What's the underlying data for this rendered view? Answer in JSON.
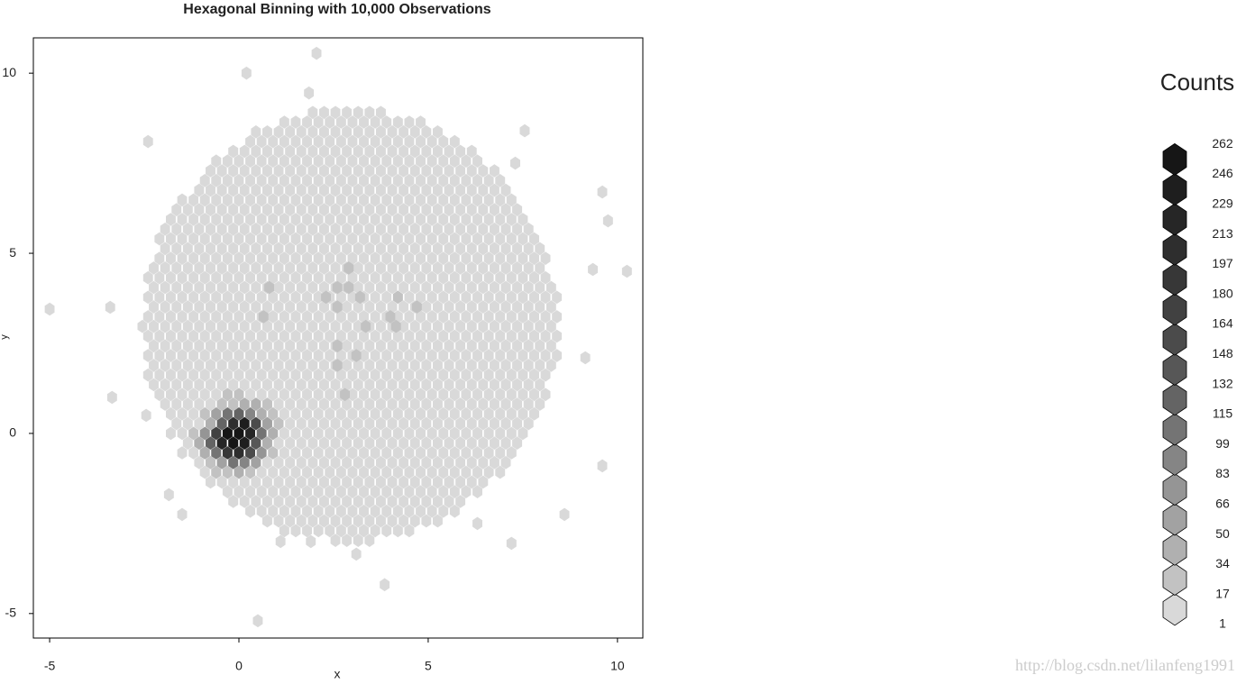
{
  "chart_data": {
    "type": "hexbin",
    "title": "Hexagonal Binning with 10,000 Observations",
    "x_label": "x",
    "y_label": "y",
    "xlim": [
      -5.43,
      10.67
    ],
    "ylim": [
      -5.68,
      10.98
    ],
    "xticks": [
      -5,
      0,
      5,
      10
    ],
    "yticks": [
      -5,
      0,
      5,
      10
    ],
    "runs": [
      {
        "y": 8.91,
        "x0": 1.95,
        "x1": 3.9,
        "count": 4
      },
      {
        "y": 8.64,
        "x0": 1.2,
        "x1": 4.8,
        "count": 4
      },
      {
        "y": 8.37,
        "x0": 0.45,
        "x1": 5.4,
        "count": 4
      },
      {
        "y": 8.1,
        "x0": 0.3,
        "x1": 5.8,
        "count": 4
      },
      {
        "y": 7.83,
        "x0": -0.15,
        "x1": 6.2,
        "count": 4
      },
      {
        "y": 7.56,
        "x0": -0.6,
        "x1": 6.5,
        "count": 4
      },
      {
        "y": 7.29,
        "x0": -0.75,
        "x1": 6.8,
        "count": 4
      },
      {
        "y": 7.02,
        "x0": -0.9,
        "x1": 7.0,
        "count": 4
      },
      {
        "y": 6.75,
        "x0": -1.05,
        "x1": 7.2,
        "count": 4
      },
      {
        "y": 6.48,
        "x0": -1.5,
        "x1": 7.4,
        "count": 4
      },
      {
        "y": 6.21,
        "x0": -1.65,
        "x1": 7.6,
        "count": 4
      },
      {
        "y": 5.94,
        "x0": -1.8,
        "x1": 7.7,
        "count": 4
      },
      {
        "y": 5.67,
        "x0": -1.95,
        "x1": 7.8,
        "count": 4
      },
      {
        "y": 5.4,
        "x0": -2.1,
        "x1": 8.0,
        "count": 4
      },
      {
        "y": 5.13,
        "x0": -1.95,
        "x1": 8.0,
        "count": 4
      },
      {
        "y": 4.86,
        "x0": -2.1,
        "x1": 8.1,
        "count": 4
      },
      {
        "y": 4.59,
        "x0": -2.25,
        "x1": 8.2,
        "count": 4
      },
      {
        "y": 4.32,
        "x0": -2.4,
        "x1": 8.3,
        "count": 4
      },
      {
        "y": 4.05,
        "x0": -2.25,
        "x1": 8.3,
        "count": 4
      },
      {
        "y": 3.78,
        "x0": -2.4,
        "x1": 8.4,
        "count": 4
      },
      {
        "y": 3.51,
        "x0": -2.25,
        "x1": 8.4,
        "count": 4
      },
      {
        "y": 3.24,
        "x0": -2.4,
        "x1": 8.4,
        "count": 4
      },
      {
        "y": 2.97,
        "x0": -2.55,
        "x1": 8.4,
        "count": 4
      },
      {
        "y": 2.7,
        "x0": -2.4,
        "x1": 8.4,
        "count": 4
      },
      {
        "y": 2.43,
        "x0": -2.25,
        "x1": 8.4,
        "count": 4
      },
      {
        "y": 2.16,
        "x0": -2.4,
        "x1": 8.4,
        "count": 4
      },
      {
        "y": 1.89,
        "x0": -2.25,
        "x1": 8.3,
        "count": 4
      },
      {
        "y": 1.62,
        "x0": -2.4,
        "x1": 8.3,
        "count": 4
      },
      {
        "y": 1.35,
        "x0": -2.25,
        "x1": 8.2,
        "count": 4
      },
      {
        "y": 1.08,
        "x0": -2.1,
        "x1": 8.1,
        "count": 4
      },
      {
        "y": 0.81,
        "x0": -1.95,
        "x1": 8.0,
        "count": 4
      },
      {
        "y": 0.54,
        "x0": -1.8,
        "x1": 7.9,
        "count": 4
      },
      {
        "y": 0.27,
        "x0": -1.65,
        "x1": 7.8,
        "count": 4
      },
      {
        "y": 0,
        "x0": -1.8,
        "x1": 7.7,
        "count": 4
      },
      {
        "y": -0.27,
        "x0": -1.35,
        "x1": 7.5,
        "count": 4
      },
      {
        "y": -0.54,
        "x0": -1.5,
        "x1": 7.4,
        "count": 4
      },
      {
        "y": -0.81,
        "x0": -1.05,
        "x1": 7.2,
        "count": 4
      },
      {
        "y": -1.08,
        "x0": -0.9,
        "x1": 7.0,
        "count": 4
      },
      {
        "y": -1.35,
        "x0": -0.75,
        "x1": 6.7,
        "count": 4
      },
      {
        "y": -1.62,
        "x0": -0.3,
        "x1": 6.4,
        "count": 4
      },
      {
        "y": -1.89,
        "x0": -0.15,
        "x1": 6.1,
        "count": 4
      },
      {
        "y": -2.16,
        "x0": 0.3,
        "x1": 5.8,
        "count": 4
      },
      {
        "y": -2.43,
        "x0": 0.75,
        "x1": 5.3,
        "count": 4
      },
      {
        "y": -2.7,
        "x0": 1.2,
        "x1": 4.7,
        "count": 4
      },
      {
        "y": -2.97,
        "x0": 2.55,
        "x1": 3.5,
        "count": 4
      }
    ],
    "hexes": [
      {
        "x": -0.3,
        "y": 1.08,
        "count": 20
      },
      {
        "x": 0,
        "y": 1.08,
        "count": 25
      },
      {
        "x": 0.3,
        "y": 1.08,
        "count": 15
      },
      {
        "x": -0.45,
        "y": 0.81,
        "count": 18
      },
      {
        "x": -0.15,
        "y": 0.81,
        "count": 30
      },
      {
        "x": 0.15,
        "y": 0.81,
        "count": 45
      },
      {
        "x": 0.45,
        "y": 0.81,
        "count": 40
      },
      {
        "x": 0.75,
        "y": 0.81,
        "count": 22
      },
      {
        "x": -0.9,
        "y": 0.54,
        "count": 25
      },
      {
        "x": -0.6,
        "y": 0.54,
        "count": 60
      },
      {
        "x": -0.3,
        "y": 0.54,
        "count": 110
      },
      {
        "x": 0,
        "y": 0.54,
        "count": 130
      },
      {
        "x": 0.3,
        "y": 0.54,
        "count": 90
      },
      {
        "x": 0.6,
        "y": 0.54,
        "count": 40
      },
      {
        "x": 0.9,
        "y": 0.54,
        "count": 18
      },
      {
        "x": -0.75,
        "y": 0.27,
        "count": 45
      },
      {
        "x": -0.45,
        "y": 0.27,
        "count": 120
      },
      {
        "x": -0.15,
        "y": 0.27,
        "count": 210
      },
      {
        "x": 0.15,
        "y": 0.27,
        "count": 230
      },
      {
        "x": 0.45,
        "y": 0.27,
        "count": 160
      },
      {
        "x": 0.75,
        "y": 0.27,
        "count": 60
      },
      {
        "x": 1.05,
        "y": 0.27,
        "count": 20
      },
      {
        "x": -1.2,
        "y": 0,
        "count": 30
      },
      {
        "x": -0.9,
        "y": 0,
        "count": 80
      },
      {
        "x": -0.6,
        "y": 0,
        "count": 170
      },
      {
        "x": -0.3,
        "y": 0,
        "count": 246
      },
      {
        "x": 0,
        "y": 0,
        "count": 262
      },
      {
        "x": 0.3,
        "y": 0,
        "count": 215
      },
      {
        "x": 0.6,
        "y": 0,
        "count": 110
      },
      {
        "x": 0.9,
        "y": 0,
        "count": 35
      },
      {
        "x": -1.05,
        "y": -0.27,
        "count": 40
      },
      {
        "x": -0.75,
        "y": -0.27,
        "count": 130
      },
      {
        "x": -0.45,
        "y": -0.27,
        "count": 220
      },
      {
        "x": -0.15,
        "y": -0.27,
        "count": 250
      },
      {
        "x": 0.15,
        "y": -0.27,
        "count": 229
      },
      {
        "x": 0.45,
        "y": -0.27,
        "count": 140
      },
      {
        "x": 0.75,
        "y": -0.27,
        "count": 45
      },
      {
        "x": -0.9,
        "y": -0.54,
        "count": 40
      },
      {
        "x": -0.6,
        "y": -0.54,
        "count": 100
      },
      {
        "x": -0.3,
        "y": -0.54,
        "count": 190
      },
      {
        "x": 0,
        "y": -0.54,
        "count": 200
      },
      {
        "x": 0.3,
        "y": -0.54,
        "count": 150
      },
      {
        "x": 0.6,
        "y": -0.54,
        "count": 70
      },
      {
        "x": 0.9,
        "y": -0.54,
        "count": 20
      },
      {
        "x": -0.75,
        "y": -0.81,
        "count": 25
      },
      {
        "x": -0.45,
        "y": -0.81,
        "count": 60
      },
      {
        "x": -0.15,
        "y": -0.81,
        "count": 100
      },
      {
        "x": 0.15,
        "y": -0.81,
        "count": 90
      },
      {
        "x": 0.45,
        "y": -0.81,
        "count": 50
      },
      {
        "x": -0.6,
        "y": -1.08,
        "count": 20
      },
      {
        "x": -0.3,
        "y": -1.08,
        "count": 30
      },
      {
        "x": 0,
        "y": -1.08,
        "count": 35
      },
      {
        "x": 0.3,
        "y": -1.08,
        "count": 25
      },
      {
        "x": 2.9,
        "y": 4.59,
        "count": 20
      },
      {
        "x": 2.6,
        "y": 4.05,
        "count": 22
      },
      {
        "x": 2.9,
        "y": 4.05,
        "count": 20
      },
      {
        "x": 3.2,
        "y": 3.78,
        "count": 20
      },
      {
        "x": 2.3,
        "y": 3.78,
        "count": 20
      },
      {
        "x": 2.6,
        "y": 3.51,
        "count": 20
      },
      {
        "x": 0.8,
        "y": 4.05,
        "count": 20
      },
      {
        "x": 0.65,
        "y": 3.24,
        "count": 20
      },
      {
        "x": 4.2,
        "y": 3.78,
        "count": 20
      },
      {
        "x": 4.7,
        "y": 3.51,
        "count": 20
      },
      {
        "x": 3.35,
        "y": 2.97,
        "count": 20
      },
      {
        "x": 4.0,
        "y": 3.24,
        "count": 20
      },
      {
        "x": 4.15,
        "y": 2.97,
        "count": 20
      },
      {
        "x": 2.6,
        "y": 2.43,
        "count": 20
      },
      {
        "x": 3.1,
        "y": 2.16,
        "count": 20
      },
      {
        "x": 2.6,
        "y": 1.89,
        "count": 20
      },
      {
        "x": 2.8,
        "y": 1.08,
        "count": 20
      },
      {
        "x": -5.0,
        "y": 3.45,
        "count": 1
      },
      {
        "x": 0.2,
        "y": 10.0,
        "count": 1
      },
      {
        "x": 2.05,
        "y": 10.55,
        "count": 1
      },
      {
        "x": -2.4,
        "y": 8.1,
        "count": 1
      },
      {
        "x": 0.5,
        "y": -5.2,
        "count": 1
      },
      {
        "x": 3.85,
        "y": -4.2,
        "count": 1
      },
      {
        "x": 7.2,
        "y": -3.05,
        "count": 1
      },
      {
        "x": 3.1,
        "y": -3.35,
        "count": 1
      },
      {
        "x": 9.6,
        "y": -0.9,
        "count": 1
      },
      {
        "x": 9.6,
        "y": 6.7,
        "count": 1
      },
      {
        "x": 9.75,
        "y": 5.9,
        "count": 1
      },
      {
        "x": 10.25,
        "y": 4.5,
        "count": 1
      },
      {
        "x": -3.35,
        "y": 1.0,
        "count": 1
      },
      {
        "x": -2.45,
        "y": 0.5,
        "count": 1
      },
      {
        "x": 9.35,
        "y": 4.55,
        "count": 1
      },
      {
        "x": -3.4,
        "y": 3.5,
        "count": 1
      },
      {
        "x": 7.55,
        "y": 8.4,
        "count": 1
      },
      {
        "x": 7.3,
        "y": 7.5,
        "count": 1
      },
      {
        "x": 8.6,
        "y": -2.25,
        "count": 1
      },
      {
        "x": 6.3,
        "y": -2.5,
        "count": 1
      },
      {
        "x": -1.5,
        "y": -2.25,
        "count": 1
      },
      {
        "x": -1.85,
        "y": -1.7,
        "count": 1
      },
      {
        "x": 1.1,
        "y": -3.0,
        "count": 1
      },
      {
        "x": 1.9,
        "y": -3.0,
        "count": 1
      },
      {
        "x": 9.15,
        "y": 2.1,
        "count": 1
      },
      {
        "x": 1.85,
        "y": 9.45,
        "count": 1
      }
    ],
    "legend": {
      "title": "Counts",
      "breaks": [
        1,
        17,
        34,
        50,
        66,
        83,
        99,
        115,
        132,
        148,
        164,
        180,
        197,
        213,
        229,
        246,
        262
      ],
      "colors": [
        "#d9d9d9",
        "#c2c2c2",
        "#b0b0b0",
        "#a2a2a2",
        "#959595",
        "#858585",
        "#747474",
        "#646464",
        "#575757",
        "#4b4b4b",
        "#414141",
        "#373737",
        "#2e2e2e",
        "#262626",
        "#1e1e1e",
        "#161616"
      ]
    }
  },
  "watermark": "http://blog.csdn.net/lilanfeng1991"
}
